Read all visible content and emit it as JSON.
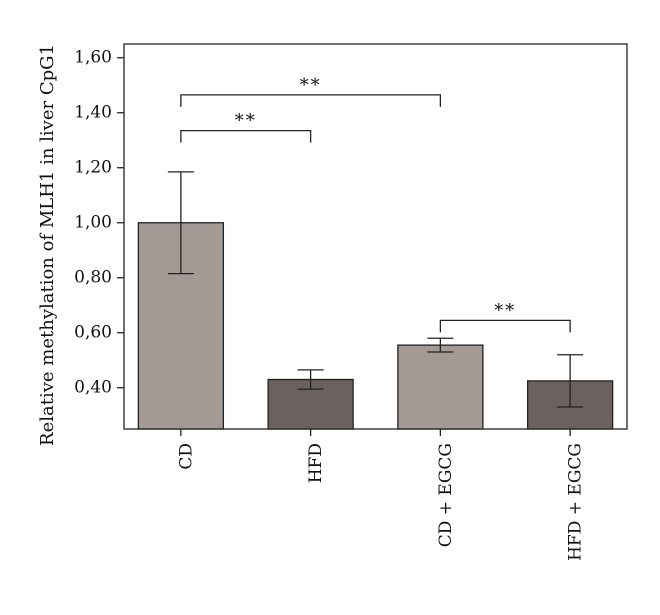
{
  "chart_data": {
    "type": "bar",
    "title": "",
    "xlabel": "",
    "ylabel": "Relative methylation of MLH1 in liver CpG1",
    "categories": [
      "CD",
      "HFD",
      "CD + EGCG",
      "HFD + EGCG"
    ],
    "values": [
      1.0,
      0.43,
      0.555,
      0.425
    ],
    "error": [
      0.185,
      0.035,
      0.025,
      0.095
    ],
    "ylim": [
      0.25,
      1.65
    ],
    "yticks": [
      0.4,
      0.6,
      0.8,
      1.0,
      1.2,
      1.4,
      1.6
    ],
    "ytick_labels": [
      "0,40",
      "0,60",
      "0,80",
      "1,00",
      "1,20",
      "1,40",
      "1,60"
    ],
    "grid": false,
    "legend": "none",
    "bar_colors": [
      "#a39a96",
      "#6b625f",
      "#a39a96",
      "#6b625f"
    ],
    "significance": [
      {
        "from": 0,
        "to": 1,
        "label": "**",
        "y": 1.335
      },
      {
        "from": 0,
        "to": 2,
        "label": "**",
        "y": 1.465
      },
      {
        "from": 2,
        "to": 3,
        "label": "**",
        "y": 0.645
      }
    ]
  }
}
